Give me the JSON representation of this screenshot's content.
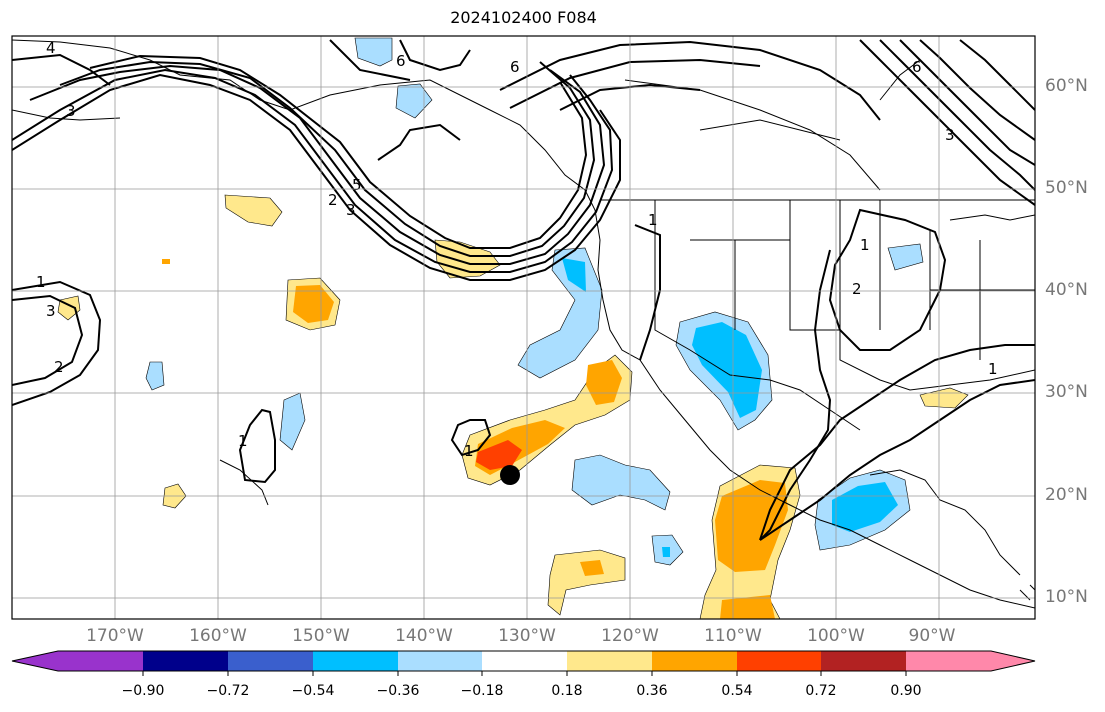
{
  "title": "2024102400 F084",
  "map": {
    "lon_range": [
      -180,
      -81
    ],
    "lat_range": [
      8,
      65
    ],
    "lon_ticks": [
      "170°W",
      "160°W",
      "150°W",
      "140°W",
      "130°W",
      "120°W",
      "110°W",
      "100°W",
      "90°W"
    ],
    "lat_ticks": [
      "60°N",
      "50°N",
      "40°N",
      "30°N",
      "20°N",
      "10°N"
    ],
    "grid": true,
    "marker": {
      "type": "black-dot",
      "lon": -131.5,
      "lat": 22.2
    },
    "contour_color": "#000000",
    "contour_labels": [
      "4",
      "6",
      "6",
      "6",
      "3",
      "3",
      "5",
      "2",
      "3",
      "1",
      "1",
      "1",
      "3",
      "2",
      "1",
      "1",
      "1",
      "2"
    ]
  },
  "colorbar": {
    "tick_labels": [
      "−0.90",
      "−0.72",
      "−0.54",
      "−0.36",
      "−0.18",
      "0.18",
      "0.36",
      "0.54",
      "0.72",
      "0.90"
    ],
    "colors": [
      "#9933cc",
      "#00008b",
      "#3a5fcd",
      "#00bfff",
      "#aadeff",
      "#ffffff",
      "#ffe88c",
      "#ffa500",
      "#ff4000",
      "#b22222",
      "#ff88aa"
    ],
    "extend": "both"
  }
}
